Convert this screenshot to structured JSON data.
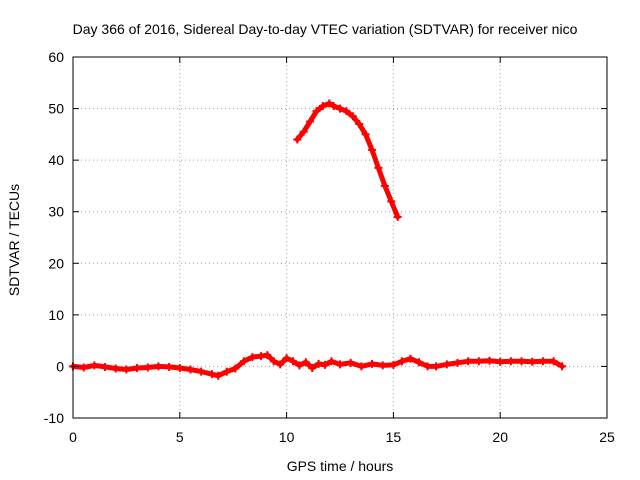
{
  "chart_data": {
    "type": "scatter",
    "title": "Day 366 of 2016, Sidereal Day-to-day VTEC variation (SDTVAR) for receiver nico",
    "xlabel": "GPS time / hours",
    "ylabel": "SDTVAR / TECUs",
    "xlim": [
      0,
      25
    ],
    "ylim": [
      -10,
      60
    ],
    "xticks": [
      0,
      5,
      10,
      15,
      20,
      25
    ],
    "yticks": [
      -10,
      0,
      10,
      20,
      30,
      40,
      50,
      60
    ],
    "grid": true,
    "marker": "plus",
    "series": [
      {
        "name": "SDTVAR",
        "color": "#ff0000",
        "segments": [
          {
            "x": [
              0.0,
              0.5,
              1.0,
              1.5,
              2.0,
              2.5,
              3.0,
              3.5,
              4.0,
              4.5,
              5.0,
              5.5,
              6.0,
              6.5,
              6.8,
              7.2,
              7.6,
              8.0,
              8.4,
              8.8,
              9.1,
              9.4,
              9.7,
              10.0,
              10.3,
              10.6,
              10.9,
              11.2,
              11.5,
              11.8,
              12.1,
              12.5,
              13.0,
              13.5,
              14.0,
              14.5,
              15.0,
              15.4,
              15.8,
              16.2,
              16.6,
              17.0,
              17.5,
              18.0,
              18.5,
              19.0,
              19.5,
              20.0,
              20.5,
              21.0,
              21.5,
              22.0,
              22.5,
              22.9
            ],
            "y": [
              0.0,
              -0.2,
              0.2,
              -0.1,
              -0.4,
              -0.6,
              -0.3,
              -0.2,
              0.0,
              -0.1,
              -0.3,
              -0.6,
              -1.0,
              -1.5,
              -1.8,
              -1.0,
              -0.4,
              1.0,
              1.8,
              2.0,
              2.2,
              1.0,
              0.4,
              1.6,
              1.0,
              0.2,
              0.8,
              -0.3,
              0.5,
              0.3,
              1.0,
              0.4,
              0.7,
              0.0,
              0.5,
              0.2,
              0.3,
              1.0,
              1.5,
              0.8,
              0.0,
              0.0,
              0.4,
              0.7,
              1.0,
              1.0,
              1.1,
              0.9,
              1.0,
              1.0,
              0.9,
              1.0,
              1.0,
              0.0
            ]
          },
          {
            "x": [
              10.5,
              10.8,
              11.1,
              11.4,
              11.7,
              12.0,
              12.2,
              12.5,
              12.8,
              13.1,
              13.4,
              13.7,
              14.0,
              14.3,
              14.6,
              14.9,
              15.2
            ],
            "y": [
              44.0,
              45.5,
              47.5,
              49.5,
              50.5,
              51.0,
              50.5,
              50.0,
              49.5,
              48.5,
              47.0,
              45.0,
              42.0,
              38.5,
              35.0,
              32.0,
              29.0
            ]
          }
        ]
      }
    ]
  }
}
